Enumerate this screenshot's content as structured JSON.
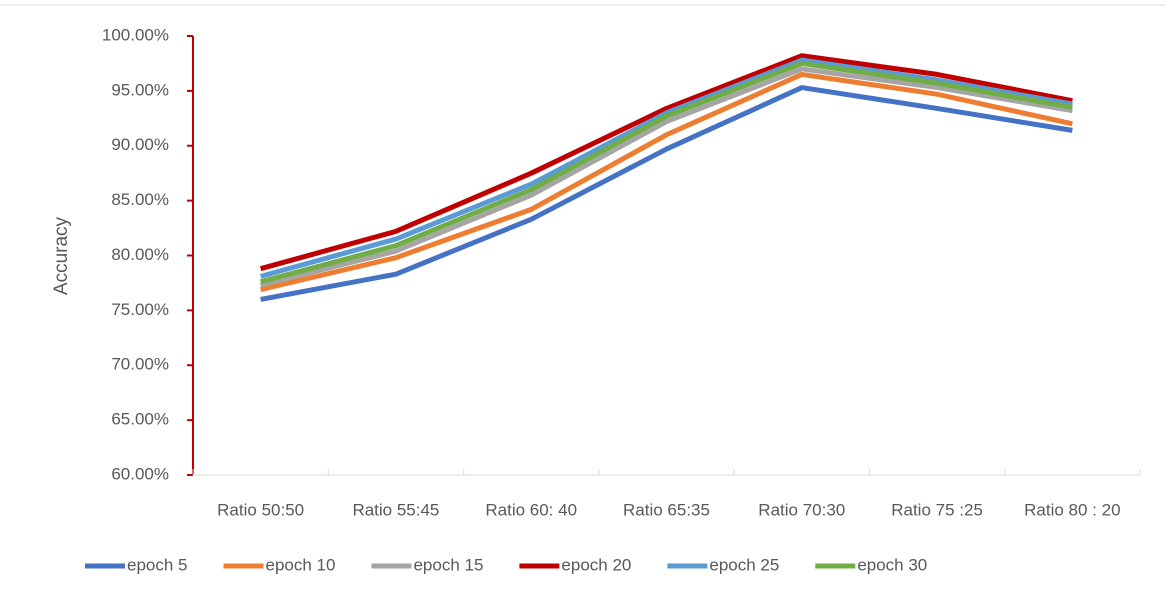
{
  "chart_data": {
    "type": "line",
    "y_label": "Accuracy",
    "categories": [
      "Ratio 50:50",
      "Ratio 55:45",
      "Ratio 60: 40",
      "Ratio 65:35",
      "Ratio 70:30",
      "Ratio 75 :25",
      "Ratio 80 : 20"
    ],
    "series": [
      {
        "name": "epoch 5",
        "color": "#4472c4",
        "values": [
          76.0,
          78.3,
          83.3,
          89.7,
          95.3,
          93.4,
          91.4
        ]
      },
      {
        "name": "epoch 10",
        "color": "#ed7d31",
        "values": [
          76.9,
          79.8,
          84.2,
          91.0,
          96.5,
          94.7,
          92.0
        ]
      },
      {
        "name": "epoch 15",
        "color": "#a5a5a5",
        "values": [
          77.3,
          80.4,
          85.5,
          92.2,
          97.0,
          95.3,
          93.2
        ]
      },
      {
        "name": "epoch 20",
        "color": "#c00000",
        "values": [
          78.8,
          82.2,
          87.5,
          93.4,
          98.2,
          96.5,
          94.1
        ]
      },
      {
        "name": "epoch 25",
        "color": "#5b9bd5",
        "values": [
          78.1,
          81.5,
          86.5,
          93.0,
          97.8,
          96.0,
          93.8
        ]
      },
      {
        "name": "epoch 30",
        "color": "#70ad47",
        "values": [
          77.6,
          80.9,
          86.0,
          92.7,
          97.5,
          95.7,
          93.5
        ]
      }
    ],
    "ylim": [
      60,
      100
    ],
    "yticks": [
      {
        "value": 60,
        "label": "60.00%"
      },
      {
        "value": 65,
        "label": "65.00%"
      },
      {
        "value": 70,
        "label": "70.00%"
      },
      {
        "value": 75,
        "label": "75.00%"
      },
      {
        "value": 80,
        "label": "80.00%"
      },
      {
        "value": 85,
        "label": "85.00%"
      },
      {
        "value": 90,
        "label": "90.00%"
      },
      {
        "value": 95,
        "label": "95.00%"
      },
      {
        "value": 100,
        "label": "100.00%"
      }
    ],
    "grid": false,
    "legend": "bottom"
  }
}
